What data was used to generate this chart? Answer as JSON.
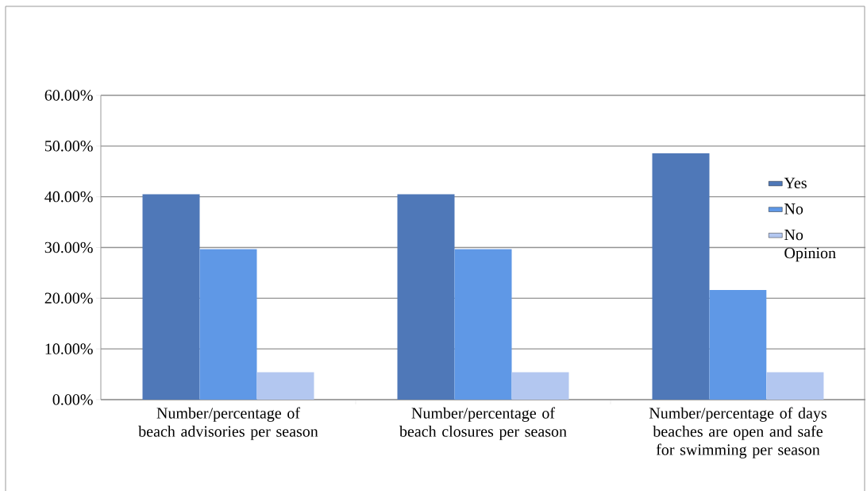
{
  "chart_data": {
    "type": "bar",
    "categories": [
      "Number/percentage of beach advisories per season",
      "Number/percentage of beach closures per season",
      "Number/percentage of days beaches are open and safe for swimming per season"
    ],
    "series": [
      {
        "name": "Yes",
        "color": "#4f78b8",
        "values": [
          40.5,
          40.5,
          48.6
        ]
      },
      {
        "name": "No",
        "color": "#5f98e6",
        "values": [
          29.7,
          29.7,
          21.6
        ]
      },
      {
        "name": "No Opinion",
        "color": "#b3c7f0",
        "values": [
          5.4,
          5.4,
          5.4
        ]
      }
    ],
    "ylim": [
      0,
      60
    ],
    "yticks": [
      {
        "value": 0,
        "label": "0.00%"
      },
      {
        "value": 10,
        "label": "10.00%"
      },
      {
        "value": 20,
        "label": "20.00%"
      },
      {
        "value": 30,
        "label": "30.00%"
      },
      {
        "value": 40,
        "label": "40.00%"
      },
      {
        "value": 50,
        "label": "50.00%"
      },
      {
        "value": 60,
        "label": "60.00%"
      }
    ],
    "grid": "y",
    "legend": "right"
  }
}
